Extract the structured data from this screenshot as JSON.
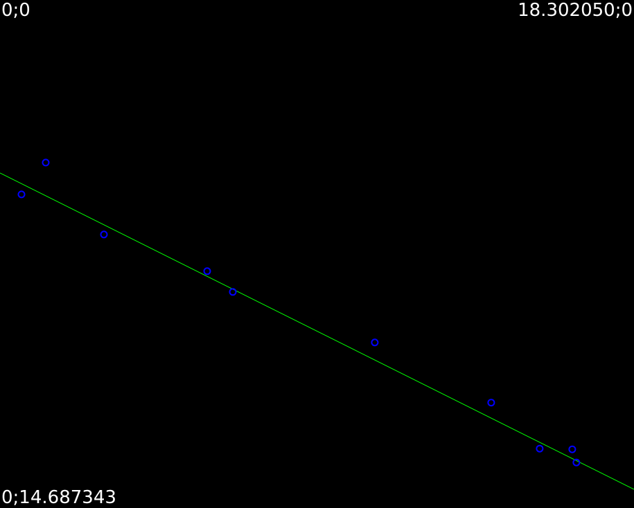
{
  "corner_labels": {
    "top_left": "0;0",
    "top_right": "18.302050;0",
    "bottom_left": "0;14.687343"
  },
  "colors": {
    "background": "#000000",
    "text": "#ffffff",
    "points": "#0000ff",
    "fit_line": "#00ff00"
  },
  "chart_data": {
    "type": "scatter",
    "xlim": [
      0,
      18.30205
    ],
    "ylim": [
      0,
      14.687343
    ],
    "y_axis_direction": "down",
    "grid": false,
    "series": [
      {
        "marker": "hollow-circle",
        "x": [
          0.62,
          1.32,
          3.0,
          5.98,
          6.72,
          10.82,
          14.18,
          15.58,
          16.52,
          16.64
        ],
        "y": [
          5.62,
          4.7,
          6.78,
          7.84,
          8.44,
          9.9,
          11.64,
          12.97,
          12.99,
          13.37
        ]
      }
    ],
    "fit_line": {
      "x": [
        0,
        18.30205
      ],
      "y": [
        5.0,
        14.15
      ]
    }
  }
}
